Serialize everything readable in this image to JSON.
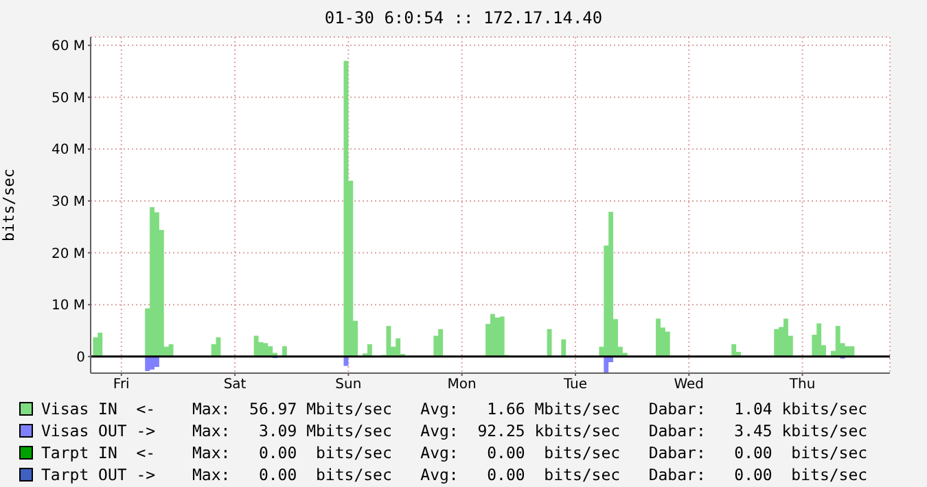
{
  "chart_data": {
    "type": "area",
    "title": "01-30 6:0:54 :: 172.17.14.40",
    "ylabel": "bits/sec",
    "categories": [
      null,
      null,
      null,
      null,
      null,
      null,
      "Fri",
      null,
      null,
      null,
      null,
      null,
      null,
      null,
      null,
      null,
      null,
      null,
      null,
      null,
      null,
      null,
      null,
      null,
      null,
      null,
      null,
      null,
      null,
      null,
      "Sat",
      null,
      null,
      null,
      null,
      null,
      null,
      null,
      null,
      null,
      null,
      null,
      null,
      null,
      null,
      null,
      null,
      null,
      null,
      null,
      null,
      null,
      null,
      null,
      "Sun",
      null,
      null,
      null,
      null,
      null,
      null,
      null,
      null,
      null,
      null,
      null,
      null,
      null,
      null,
      null,
      null,
      null,
      null,
      null,
      null,
      null,
      null,
      null,
      "Mon",
      null,
      null,
      null,
      null,
      null,
      null,
      null,
      null,
      null,
      null,
      null,
      null,
      null,
      null,
      null,
      null,
      null,
      null,
      null,
      null,
      null,
      null,
      null,
      "Tue",
      null,
      null,
      null,
      null,
      null,
      null,
      null,
      null,
      null,
      null,
      null,
      null,
      null,
      null,
      null,
      null,
      null,
      null,
      null,
      null,
      null,
      null,
      null,
      "Wed",
      null,
      null,
      null,
      null,
      null,
      null,
      null,
      null,
      null,
      null,
      null,
      null,
      null,
      null,
      null,
      null,
      null,
      null,
      null,
      null,
      null,
      null,
      null,
      "Thu",
      null,
      null,
      null,
      null,
      null,
      null,
      null,
      null,
      null,
      null,
      null,
      null,
      null,
      null,
      null,
      null,
      null,
      null
    ],
    "ylim": [
      -3.2,
      61.6
    ],
    "yticks": [
      0,
      {
        "value": 10,
        "label": "10 M"
      },
      {
        "value": 20,
        "label": "20 M"
      },
      {
        "value": 30,
        "label": "30 M"
      },
      {
        "value": 40,
        "label": "40 M"
      },
      {
        "value": 50,
        "label": "50 M"
      },
      {
        "value": 60,
        "label": "60 M"
      }
    ],
    "grid": true,
    "legend": "bottom",
    "series": [
      {
        "name": "Visas IN  <-",
        "color": "#80dc80",
        "values": [
          3.7,
          4.6,
          0,
          0,
          0,
          0,
          0,
          0,
          0,
          0,
          0,
          9.3,
          28.8,
          27.8,
          24.4,
          1.9,
          2.4,
          0,
          0,
          0,
          0,
          0,
          0,
          0,
          0,
          2.4,
          3.7,
          0,
          0,
          0,
          0,
          0,
          0,
          0,
          4,
          2.8,
          2.6,
          2.0,
          0.7,
          0,
          2.0,
          0,
          0,
          0,
          0,
          0,
          0,
          0,
          0,
          0,
          0,
          0,
          0,
          57,
          33.9,
          6.9,
          0,
          0.6,
          2.4,
          0,
          0,
          0.3,
          5.9,
          1.9,
          3.5,
          0.5,
          0,
          0,
          0,
          0,
          0,
          0,
          4,
          5.3,
          0,
          0,
          0,
          0,
          0,
          0,
          0,
          0,
          0,
          6.3,
          8.2,
          7.5,
          7.7,
          0.3,
          0,
          0,
          0,
          0,
          0,
          0,
          0,
          0,
          5.3,
          0,
          0,
          3.3,
          0,
          0,
          0,
          0,
          0,
          0,
          0,
          1.9,
          21.4,
          27.9,
          7.2,
          1.9,
          0.7,
          0,
          0,
          0,
          0,
          0,
          0,
          7.3,
          5.6,
          4.8,
          0,
          0,
          0,
          0,
          0,
          0,
          0,
          0,
          0,
          0,
          0,
          0,
          0,
          2.4,
          0.9,
          0,
          0,
          0,
          0,
          0,
          0,
          0,
          5.3,
          5.7,
          7.3,
          4.0,
          0,
          0,
          0,
          0,
          4.2,
          6.4,
          2.2,
          0,
          1.1,
          5.9,
          2.6,
          2.0,
          2.0,
          0,
          0,
          0,
          0,
          0,
          0,
          0,
          0
        ]
      },
      {
        "name": "Visas OUT ->",
        "color": "#8080ff",
        "values": [
          0,
          0,
          0,
          0,
          0,
          0,
          0,
          0,
          0,
          0,
          0,
          -2.8,
          -2.5,
          -2.0,
          0,
          0,
          0,
          0,
          0,
          0,
          0,
          0,
          0,
          0,
          0,
          0,
          0,
          0,
          0,
          0,
          0,
          0,
          0,
          0,
          0,
          0,
          0,
          0,
          -0.3,
          0,
          0,
          0,
          0,
          0,
          0,
          0,
          0,
          0,
          0,
          0,
          0,
          0,
          0,
          -1.8,
          0,
          0,
          0,
          0,
          0,
          0,
          0,
          0,
          0,
          0,
          0,
          0,
          0,
          0,
          0,
          0,
          0,
          0,
          0,
          0,
          0,
          0,
          0,
          0,
          0,
          0,
          0,
          0,
          0,
          0,
          0,
          0,
          0,
          0,
          0,
          0,
          0,
          0,
          0,
          0,
          0,
          0,
          0,
          0,
          0,
          0,
          0,
          0,
          0,
          0,
          0,
          0,
          0,
          0,
          -3.1,
          -1.1,
          0,
          0,
          0,
          0,
          0,
          0,
          0,
          0,
          0,
          0,
          0,
          0,
          0,
          0,
          0,
          0,
          0,
          0,
          0,
          0,
          0,
          0,
          0,
          0,
          0,
          0,
          0,
          0,
          0,
          0,
          0,
          0,
          0,
          0,
          0,
          0,
          0,
          0,
          0,
          0,
          0,
          0,
          0,
          0,
          0,
          0,
          0,
          0,
          -0.4,
          0,
          0,
          0,
          0,
          0,
          0,
          0,
          0,
          0,
          0
        ]
      },
      {
        "name": "Tarpt IN  <-",
        "color": "#00a000",
        "values": [
          null,
          null,
          null,
          null,
          null,
          null,
          null,
          null,
          null,
          null,
          null,
          null,
          null,
          null,
          null,
          null,
          null,
          null,
          null,
          null,
          null,
          null,
          null,
          null,
          null,
          null,
          null,
          null,
          null,
          null,
          null,
          null,
          null,
          null,
          null,
          null,
          null,
          null,
          null,
          null,
          null,
          null,
          null,
          null,
          null,
          null,
          null,
          null,
          null,
          null,
          null,
          null,
          null,
          null,
          null,
          null,
          null,
          null,
          null,
          null,
          null,
          null,
          null,
          null,
          null,
          null,
          null,
          null,
          null,
          null,
          null,
          null,
          null,
          null,
          null,
          null,
          null,
          null,
          null,
          null,
          null,
          null,
          null,
          null,
          null,
          null,
          null,
          null,
          null,
          null,
          null,
          null,
          null,
          null,
          null,
          null,
          null,
          null,
          null,
          null,
          null,
          null,
          null,
          null,
          null,
          null,
          null,
          null,
          null,
          null,
          null,
          null,
          null,
          null,
          null,
          null,
          null,
          null,
          null,
          null,
          null,
          null,
          null,
          null,
          null,
          null,
          null,
          null,
          null,
          null,
          null,
          null,
          null,
          null,
          null,
          null,
          null,
          null,
          null,
          null,
          null,
          null,
          null,
          null,
          null,
          null,
          null,
          null,
          null,
          null,
          null,
          null,
          null,
          null,
          null,
          null,
          null,
          null,
          null,
          null,
          null,
          null,
          null,
          null,
          null,
          null,
          null,
          null,
          null
        ]
      },
      {
        "name": "Tarpt OUT ->",
        "color": "#4060c0",
        "values": [
          null,
          null,
          null,
          null,
          null,
          null,
          null,
          null,
          null,
          null,
          null,
          null,
          null,
          null,
          null,
          null,
          null,
          null,
          null,
          null,
          null,
          null,
          null,
          null,
          null,
          null,
          null,
          null,
          null,
          null,
          null,
          null,
          null,
          null,
          null,
          null,
          null,
          null,
          null,
          null,
          null,
          null,
          null,
          null,
          null,
          null,
          null,
          null,
          null,
          null,
          null,
          null,
          null,
          null,
          null,
          null,
          null,
          null,
          null,
          null,
          null,
          null,
          null,
          null,
          null,
          null,
          null,
          null,
          null,
          null,
          null,
          null,
          null,
          null,
          null,
          null,
          null,
          null,
          null,
          null,
          null,
          null,
          null,
          null,
          null,
          null,
          null,
          null,
          null,
          null,
          null,
          null,
          null,
          null,
          null,
          null,
          null,
          null,
          null,
          null,
          null,
          null,
          null,
          null,
          null,
          null,
          null,
          null,
          null,
          null,
          null,
          null,
          null,
          null,
          null,
          null,
          null,
          null,
          null,
          null,
          null,
          null,
          null,
          null,
          null,
          null,
          null,
          null,
          null,
          null,
          null,
          null,
          null,
          null,
          null,
          null,
          null,
          null,
          null,
          null,
          null,
          null,
          null,
          null,
          null,
          null,
          null,
          null,
          null,
          null,
          null,
          null,
          null,
          null,
          null,
          null,
          null,
          null,
          null,
          null,
          null,
          null,
          null,
          null,
          null,
          null,
          null,
          null,
          null
        ]
      }
    ],
    "annotations": [
      "Max:  56.97 Mbits/sec   Avg:   1.66 Mbits/sec   Dabar:   1.04 kbits/sec",
      "Max:   3.09 Mbits/sec   Avg:  92.25 kbits/sec   Dabar:   3.45 kbits/sec",
      "Max:   0.00  bits/sec   Avg:   0.00  bits/sec   Dabar:   0.00  bits/sec",
      "Max:   0.00  bits/sec   Avg:   0.00  bits/sec   Dabar:   0.00  bits/sec"
    ]
  }
}
